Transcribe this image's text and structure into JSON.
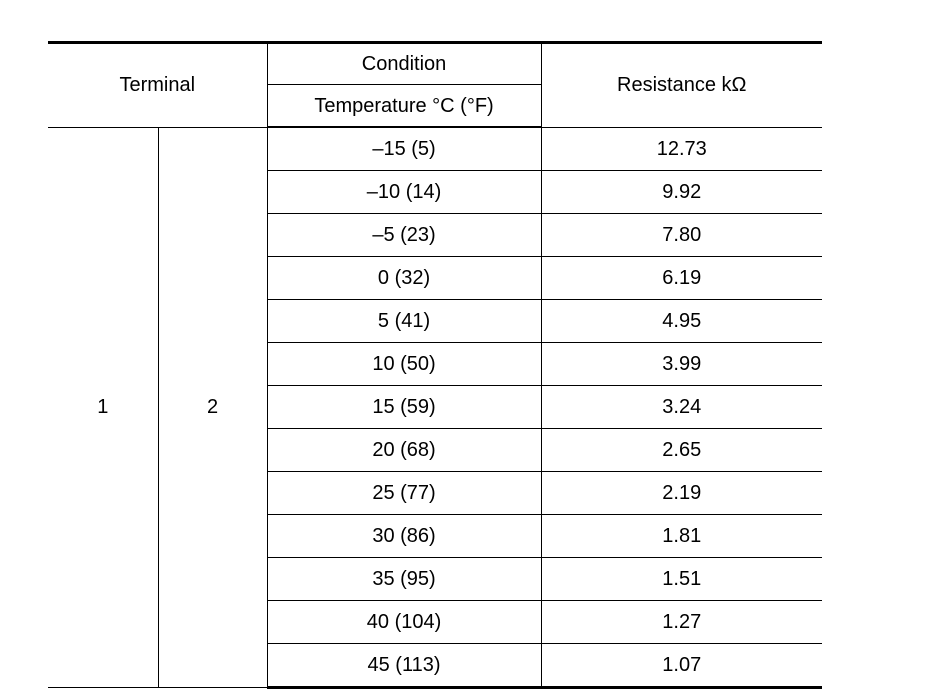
{
  "table": {
    "headers": {
      "terminal": "Terminal",
      "condition": "Condition",
      "temperature": "Temperature °C (°F)",
      "resistance": "Resistance kΩ"
    },
    "terminal_1": "1",
    "terminal_2": "2",
    "rows": [
      {
        "temperature": "–15 (5)",
        "resistance": "12.73"
      },
      {
        "temperature": "–10 (14)",
        "resistance": "9.92"
      },
      {
        "temperature": "–5 (23)",
        "resistance": "7.80"
      },
      {
        "temperature": "0 (32)",
        "resistance": "6.19"
      },
      {
        "temperature": "5 (41)",
        "resistance": "4.95"
      },
      {
        "temperature": "10 (50)",
        "resistance": "3.99"
      },
      {
        "temperature": "15 (59)",
        "resistance": "3.24"
      },
      {
        "temperature": "20 (68)",
        "resistance": "2.65"
      },
      {
        "temperature": "25 (77)",
        "resistance": "2.19"
      },
      {
        "temperature": "30 (86)",
        "resistance": "1.81"
      },
      {
        "temperature": "35 (95)",
        "resistance": "1.51"
      },
      {
        "temperature": "40 (104)",
        "resistance": "1.27"
      },
      {
        "temperature": "45 (113)",
        "resistance": "1.07"
      }
    ]
  }
}
